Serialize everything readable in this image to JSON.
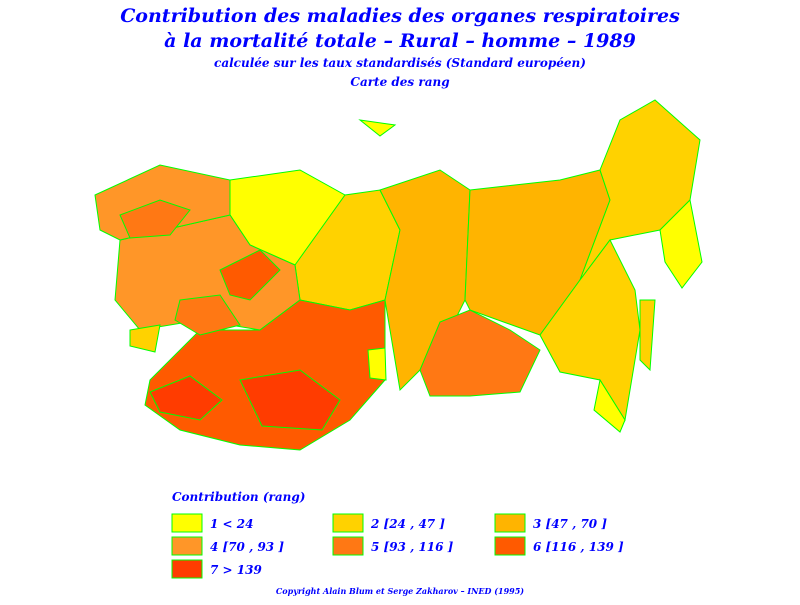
{
  "title": "Contribution des maladies des organes respiratoires",
  "subtitle": "à la mortalité totale  –  Rural  –  homme  –  1989",
  "note": "calculée sur les taux standardisés (Standard européen)",
  "map_title": "Carte des rang",
  "legend": {
    "title": "Contribution (rang)",
    "items": [
      {
        "label": "1  <  24",
        "color": "#ffff00"
      },
      {
        "label": "2  [24 , 47 ]",
        "color": "#ffd200"
      },
      {
        "label": "3  [47 , 70 ]",
        "color": "#ffb400"
      },
      {
        "label": "4  [70 , 93 ]",
        "color": "#ff9628"
      },
      {
        "label": "5  [93 , 116 ]",
        "color": "#ff7814"
      },
      {
        "label": "6  [116 , 139 ]",
        "color": "#ff5a00"
      },
      {
        "label": "7  >  139",
        "color": "#ff3c00"
      }
    ]
  },
  "copyright": "Copyright Alain Blum et Serge Zakharov  –  INED (1995)"
}
